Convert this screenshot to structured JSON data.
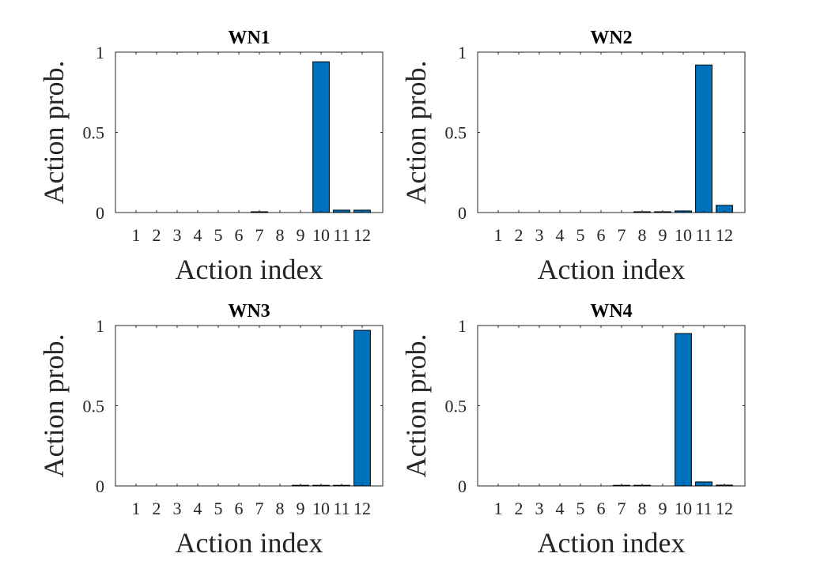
{
  "chart_data": [
    {
      "type": "bar",
      "title": "WN1",
      "xlabel": "Action index",
      "ylabel": "Action prob.",
      "categories": [
        "1",
        "2",
        "3",
        "4",
        "5",
        "6",
        "7",
        "8",
        "9",
        "10",
        "11",
        "12"
      ],
      "values": [
        0,
        0,
        0,
        0,
        0,
        0,
        0.005,
        0,
        0,
        0.94,
        0.015,
        0.015
      ],
      "ylim": [
        0,
        1
      ],
      "yticks": [
        "0",
        "0.5",
        "1"
      ],
      "grid": false,
      "legend": null,
      "bar_color": "#0072BD"
    },
    {
      "type": "bar",
      "title": "WN2",
      "xlabel": "Action index",
      "ylabel": "Action prob.",
      "categories": [
        "1",
        "2",
        "3",
        "4",
        "5",
        "6",
        "7",
        "8",
        "9",
        "10",
        "11",
        "12"
      ],
      "values": [
        0,
        0,
        0,
        0,
        0,
        0,
        0,
        0.005,
        0.005,
        0.01,
        0.92,
        0.045
      ],
      "ylim": [
        0,
        1
      ],
      "yticks": [
        "0",
        "0.5",
        "1"
      ],
      "grid": false,
      "legend": null,
      "bar_color": "#0072BD"
    },
    {
      "type": "bar",
      "title": "WN3",
      "xlabel": "Action index",
      "ylabel": "Action prob.",
      "categories": [
        "1",
        "2",
        "3",
        "4",
        "5",
        "6",
        "7",
        "8",
        "9",
        "10",
        "11",
        "12"
      ],
      "values": [
        0,
        0,
        0,
        0,
        0,
        0,
        0,
        0,
        0.004,
        0.004,
        0.004,
        0.97
      ],
      "ylim": [
        0,
        1
      ],
      "yticks": [
        "0",
        "0.5",
        "1"
      ],
      "grid": false,
      "legend": null,
      "bar_color": "#0072BD"
    },
    {
      "type": "bar",
      "title": "WN4",
      "xlabel": "Action index",
      "ylabel": "Action prob.",
      "categories": [
        "1",
        "2",
        "3",
        "4",
        "5",
        "6",
        "7",
        "8",
        "9",
        "10",
        "11",
        "12"
      ],
      "values": [
        0,
        0,
        0,
        0,
        0,
        0,
        0.004,
        0.004,
        0,
        0.95,
        0.025,
        0.005
      ],
      "ylim": [
        0,
        1
      ],
      "yticks": [
        "0",
        "0.5",
        "1"
      ],
      "grid": false,
      "legend": null,
      "bar_color": "#0072BD"
    }
  ]
}
